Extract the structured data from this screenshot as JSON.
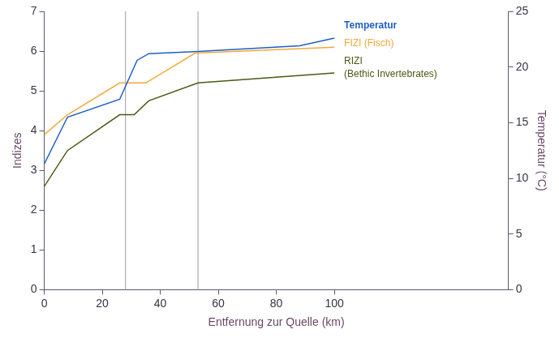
{
  "chart_data": {
    "type": "line",
    "x_label": "Entfernung zur Quelle (km)",
    "y_label": "Indizes",
    "y2_label": "Temperatur (°C)",
    "xlim": [
      0,
      160
    ],
    "xticks": [
      0,
      20,
      40,
      60,
      80,
      100
    ],
    "ylim": [
      0,
      7
    ],
    "yticks": [
      0,
      1,
      2,
      3,
      4,
      5,
      6,
      7
    ],
    "y2lim": [
      0,
      25
    ],
    "y2ticks": [
      0,
      5,
      10,
      15,
      20,
      25
    ],
    "grid": false,
    "boundaries": [
      28,
      53
    ],
    "series": [
      {
        "name": "Temperatur",
        "color": "#1f5fc4",
        "axis": "y2",
        "x": [
          0,
          8,
          26,
          32,
          36,
          53,
          88,
          100
        ],
        "values": [
          11.3,
          15.5,
          17.1,
          20.6,
          21.2,
          21.4,
          21.9,
          22.6
        ]
      },
      {
        "name": "FIZI (Fisch)",
        "color": "#f2a93b",
        "axis": "y",
        "x": [
          0,
          8,
          26,
          35,
          52,
          100
        ],
        "values": [
          3.9,
          4.4,
          5.2,
          5.2,
          5.95,
          6.1
        ]
      },
      {
        "name": "RIZI (Bethic Invertebrates)",
        "color": "#4a5a16",
        "axis": "y",
        "x": [
          0,
          8,
          26,
          31,
          36,
          53,
          100
        ],
        "values": [
          2.6,
          3.5,
          4.4,
          4.4,
          4.75,
          5.2,
          5.45
        ]
      }
    ]
  }
}
